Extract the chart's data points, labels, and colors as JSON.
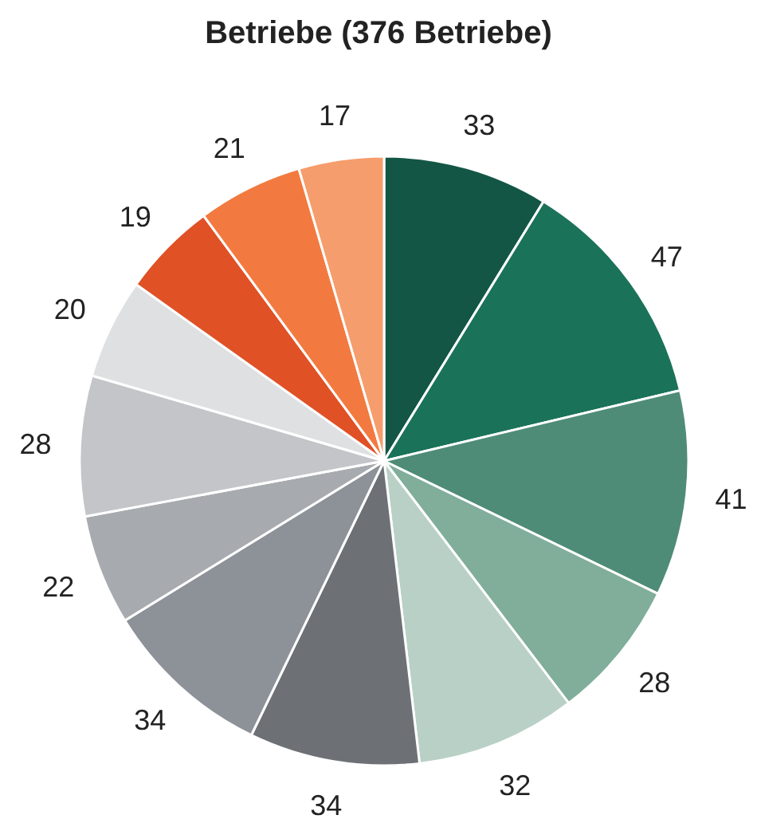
{
  "chart_data": {
    "type": "pie",
    "title": "Betriebe (376 Betriebe)",
    "categories": [
      null,
      null,
      null,
      null,
      null,
      null,
      null,
      null,
      null,
      null,
      null,
      null,
      null
    ],
    "values": [
      33,
      47,
      41,
      28,
      32,
      34,
      34,
      22,
      28,
      20,
      19,
      21,
      17
    ],
    "colors": [
      "#135645",
      "#1a7259",
      "#4f8c78",
      "#80ae9a",
      "#b9d0c7",
      "#6d7175",
      "#8d9299",
      "#a7aaae",
      "#c3c5c8",
      "#dfe0e2",
      "#e05126",
      "#f27a40",
      "#f59d6c"
    ],
    "data_labels": true
  }
}
